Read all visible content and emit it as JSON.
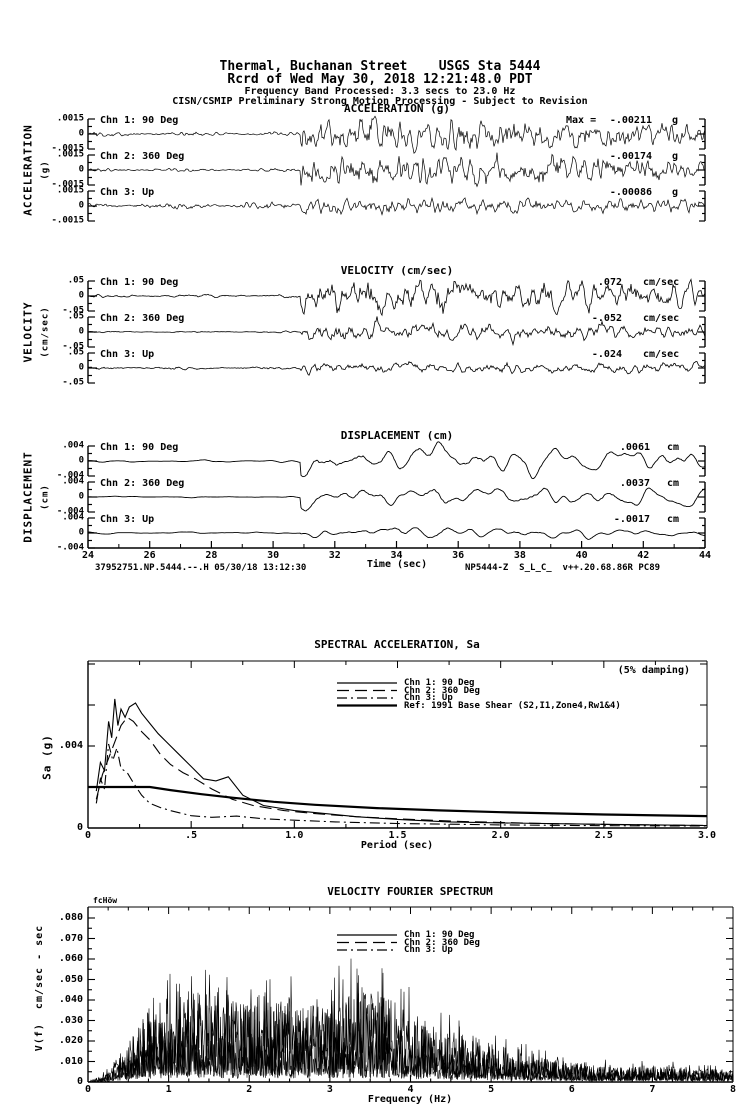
{
  "colors": {
    "ink": "#000000",
    "paper": "#ffffff"
  },
  "header": {
    "line1": "Thermal, Buchanan Street    USGS Sta 5444",
    "line2": "Rcrd of Wed May 30, 2018 12:21:48.0 PDT",
    "line3": "Frequency Band Processed: 3.3 secs to 23.0 Hz",
    "line4": "CISN/CSMIP Preliminary Strong Motion Processing - Subject to Revision"
  },
  "footer": {
    "left": "37952751.NP.5444.--.H 05/30/18 13:12:30",
    "right": "NP5444-Z  S_L_C_  v++.20.68.86R PC89"
  },
  "chart_data": [
    {
      "id": "timeseries",
      "type": "line",
      "xlabel": "Time (sec)",
      "xlim": [
        24,
        44
      ],
      "xticks": [
        "24",
        "26",
        "28",
        "30",
        "32",
        "34",
        "36",
        "38",
        "40",
        "42",
        "44"
      ],
      "event_onset_sec": 31.0,
      "panels": [
        {
          "title": "ACCELERATION (g)",
          "side_label": "ACCELERATION",
          "side_unit": "(g)",
          "ylim": [
            -0.0015,
            0.0015
          ],
          "ytick_labels": [
            ".0015",
            "0",
            "-.0015"
          ],
          "channels": [
            {
              "label": "Chn 1: 90 Deg",
              "max_prefix": "Max =",
              "peak_label": "-.00211",
              "unit": "g",
              "peak_value": -0.00211
            },
            {
              "label": "Chn 2: 360 Deg",
              "peak_label": "-.00174",
              "unit": "g",
              "peak_value": -0.00174
            },
            {
              "label": "Chn 3: Up",
              "peak_label": "-.00086",
              "unit": "g",
              "peak_value": -0.00086
            }
          ]
        },
        {
          "title": "VELOCITY (cm/sec)",
          "side_label": "VELOCITY",
          "side_unit": "(cm/sec)",
          "ylim": [
            -0.05,
            0.05
          ],
          "ytick_labels": [
            ".05",
            "0",
            "-.05"
          ],
          "channels": [
            {
              "label": "Chn 1: 90 Deg",
              "peak_label": ".072",
              "unit": "cm/sec",
              "peak_value": 0.072
            },
            {
              "label": "Chn 2: 360 Deg",
              "peak_label": "-.052",
              "unit": "cm/sec",
              "peak_value": -0.052
            },
            {
              "label": "Chn 3: Up",
              "peak_label": "-.024",
              "unit": "cm/sec",
              "peak_value": -0.024
            }
          ]
        },
        {
          "title": "DISPLACEMENT (cm)",
          "side_label": "DISPLACEMENT",
          "side_unit": "(cm)",
          "ylim": [
            -0.004,
            0.004
          ],
          "ytick_labels": [
            ".004",
            "0",
            "-.004"
          ],
          "channels": [
            {
              "label": "Chn 1: 90 Deg",
              "peak_label": ".0061",
              "unit": "cm",
              "peak_value": 0.0061
            },
            {
              "label": "Chn 2: 360 Deg",
              "peak_label": ".0037",
              "unit": "cm",
              "peak_value": 0.0037
            },
            {
              "label": "Chn 3: Up",
              "peak_label": "-.0017",
              "unit": "cm",
              "peak_value": -0.0017
            }
          ]
        }
      ]
    },
    {
      "id": "spectral-acceleration",
      "type": "line",
      "title": "SPECTRAL ACCELERATION, Sa",
      "annotation": "(5% damping)",
      "xlabel": "Period (sec)",
      "ylabel": "Sa (g)",
      "xlim": [
        0,
        3.0
      ],
      "xticks": [
        "0",
        ".5",
        "1.0",
        "1.5",
        "2.0",
        "2.5",
        "3.0"
      ],
      "ylim": [
        0,
        0.0082
      ],
      "yticks": [
        {
          "label": "0",
          "value": 0
        },
        {
          "label": ".004",
          "value": 0.004
        }
      ],
      "legend_position": "inside-top-center",
      "grid": false,
      "series": [
        {
          "name": "Chn 1: 90 Deg",
          "style": "solid",
          "x": [
            0.04,
            0.06,
            0.08,
            0.1,
            0.115,
            0.13,
            0.145,
            0.16,
            0.18,
            0.2,
            0.23,
            0.26,
            0.3,
            0.34,
            0.38,
            0.44,
            0.5,
            0.56,
            0.62,
            0.68,
            0.75,
            0.85,
            1.0,
            1.15,
            1.3,
            1.5,
            1.75,
            2.0,
            2.5,
            3.0
          ],
          "y": [
            0.0018,
            0.0032,
            0.0028,
            0.0052,
            0.0044,
            0.0063,
            0.005,
            0.0058,
            0.0054,
            0.0059,
            0.0061,
            0.0056,
            0.0051,
            0.0046,
            0.0042,
            0.0036,
            0.003,
            0.0024,
            0.0023,
            0.0025,
            0.0016,
            0.0011,
            0.00085,
            0.0007,
            0.00055,
            0.00042,
            0.0003,
            0.00025,
            0.00018,
            0.00012
          ]
        },
        {
          "name": "Chn 2: 360 Deg",
          "style": "long-dash",
          "x": [
            0.04,
            0.07,
            0.1,
            0.13,
            0.16,
            0.19,
            0.22,
            0.26,
            0.3,
            0.35,
            0.4,
            0.46,
            0.52,
            0.6,
            0.7,
            0.8,
            0.95,
            1.1,
            1.3,
            1.5,
            1.8,
            2.2,
            2.6,
            3.0
          ],
          "y": [
            0.0014,
            0.0026,
            0.0034,
            0.0042,
            0.005,
            0.0054,
            0.0052,
            0.0047,
            0.0043,
            0.0036,
            0.0031,
            0.0027,
            0.0024,
            0.0019,
            0.0014,
            0.0011,
            0.00085,
            0.0007,
            0.00055,
            0.00045,
            0.00032,
            0.00022,
            0.00016,
            0.00012
          ]
        },
        {
          "name": "Chn 3: Up",
          "style": "dash-dot",
          "x": [
            0.04,
            0.06,
            0.08,
            0.1,
            0.12,
            0.14,
            0.16,
            0.19,
            0.22,
            0.26,
            0.3,
            0.35,
            0.4,
            0.5,
            0.6,
            0.72,
            0.85,
            1.0,
            1.2,
            1.5,
            2.0,
            2.5,
            3.0
          ],
          "y": [
            0.0012,
            0.0024,
            0.0019,
            0.0041,
            0.0033,
            0.0039,
            0.0029,
            0.0027,
            0.0022,
            0.0016,
            0.0012,
            0.001,
            0.00085,
            0.0006,
            0.00052,
            0.00058,
            0.00045,
            0.00038,
            0.0003,
            0.00022,
            0.00015,
            0.00011,
            0.0001
          ]
        },
        {
          "name": "Ref: 1991 Base Shear (S2,I1,Zone4,Rw1&4)",
          "style": "solid-heavy",
          "x": [
            0,
            0.3,
            0.4,
            0.55,
            0.7,
            0.9,
            1.1,
            1.4,
            1.7,
            2.0,
            2.5,
            3.0
          ],
          "y": [
            0.002,
            0.002,
            0.00185,
            0.00165,
            0.00148,
            0.00128,
            0.00113,
            0.00097,
            0.00086,
            0.00077,
            0.00066,
            0.00058
          ]
        }
      ]
    },
    {
      "id": "velocity-fourier-spectrum",
      "type": "line",
      "title": "VELOCITY FOURIER SPECTRUM",
      "corner_note": "fcHöw",
      "xlabel": "Frequency (Hz)",
      "ylabel": "V(f)  cm/sec - sec",
      "xlim": [
        0,
        8
      ],
      "xticks": [
        "0",
        "1",
        "2",
        "3",
        "4",
        "5",
        "6",
        "7",
        "8"
      ],
      "ylim": [
        0,
        0.08
      ],
      "yticks": [
        "0",
        ".010",
        ".020",
        ".030",
        ".040",
        ".050",
        ".060",
        ".070",
        ".080"
      ],
      "legend_position": "inside-top-center",
      "grid": false,
      "series": [
        {
          "name": "Chn 1: 90 Deg",
          "style": "solid",
          "envelope_x": [
            0,
            0.2,
            0.4,
            0.7,
            1.0,
            1.3,
            1.6,
            1.9,
            2.2,
            2.5,
            2.8,
            3.1,
            3.4,
            3.7,
            4.0,
            4.3,
            4.6,
            5.0,
            5.4,
            5.8,
            6.2,
            6.6,
            7.0,
            7.4,
            8.0
          ],
          "envelope_y": [
            0,
            0.004,
            0.014,
            0.03,
            0.038,
            0.046,
            0.042,
            0.038,
            0.044,
            0.04,
            0.036,
            0.042,
            0.05,
            0.046,
            0.034,
            0.028,
            0.024,
            0.02,
            0.014,
            0.011,
            0.009,
            0.008,
            0.0085,
            0.007,
            0.006
          ]
        },
        {
          "name": "Chn 2: 360 Deg",
          "style": "long-dash",
          "envelope_x": [
            0,
            0.2,
            0.4,
            0.7,
            1.0,
            1.3,
            1.6,
            1.9,
            2.2,
            2.5,
            2.8,
            3.1,
            3.4,
            3.7,
            4.0,
            4.3,
            4.6,
            5.0,
            5.4,
            5.8,
            6.2,
            6.6,
            7.0,
            7.4,
            8.0
          ],
          "envelope_y": [
            0,
            0.003,
            0.012,
            0.034,
            0.042,
            0.038,
            0.044,
            0.04,
            0.036,
            0.042,
            0.038,
            0.036,
            0.044,
            0.04,
            0.03,
            0.026,
            0.022,
            0.017,
            0.012,
            0.01,
            0.008,
            0.007,
            0.0075,
            0.0065,
            0.0055
          ]
        },
        {
          "name": "Chn 3: Up",
          "style": "dash-dot",
          "envelope_x": [
            0,
            0.2,
            0.4,
            0.7,
            1.0,
            1.3,
            1.6,
            1.9,
            2.2,
            2.5,
            2.8,
            3.1,
            3.4,
            3.7,
            4.0,
            4.3,
            4.6,
            5.0,
            5.4,
            5.8,
            6.2,
            6.6,
            7.0,
            7.4,
            8.0
          ],
          "envelope_y": [
            0,
            0.002,
            0.008,
            0.018,
            0.024,
            0.026,
            0.025,
            0.022,
            0.024,
            0.022,
            0.02,
            0.022,
            0.026,
            0.024,
            0.018,
            0.015,
            0.013,
            0.011,
            0.009,
            0.007,
            0.006,
            0.0055,
            0.006,
            0.005,
            0.0045
          ]
        }
      ]
    }
  ]
}
